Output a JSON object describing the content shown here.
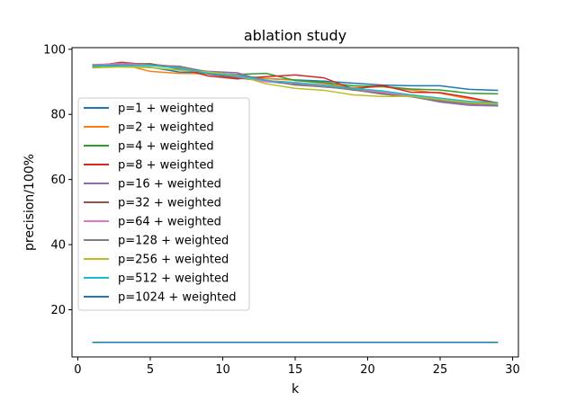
{
  "chart_data": {
    "type": "line",
    "title": "ablation study",
    "xlabel": "k",
    "ylabel": "precision/100%",
    "xlim": [
      -0.4,
      30.4
    ],
    "ylim": [
      5.5,
      100.5
    ],
    "xticks": [
      0,
      5,
      10,
      15,
      20,
      25,
      30
    ],
    "yticks": [
      20,
      40,
      60,
      80,
      100
    ],
    "grid": false,
    "legend_position": "center-left",
    "x": [
      1,
      3,
      5,
      7,
      9,
      11,
      13,
      15,
      17,
      19,
      21,
      23,
      25,
      27,
      29
    ],
    "series": [
      {
        "name": "p=1 + weighted",
        "color": "#1f77b4",
        "values": [
          95.0,
          94.6,
          94.5,
          93.0,
          92.8,
          92.0,
          91.0,
          90.6,
          90.2,
          89.6,
          89.0,
          88.8,
          88.8,
          87.7,
          87.4
        ]
      },
      {
        "name": "p=2 + weighted",
        "color": "#ff7f0e",
        "values": [
          95.3,
          95.5,
          93.2,
          92.6,
          92.5,
          91.8,
          91.0,
          90.5,
          89.5,
          88.2,
          88.5,
          87.5,
          86.5,
          84.8,
          83.6
        ]
      },
      {
        "name": "p=4 + weighted",
        "color": "#2ca02c",
        "values": [
          94.6,
          95.4,
          95.6,
          93.9,
          92.5,
          92.3,
          92.6,
          90.4,
          89.8,
          88.8,
          88.6,
          87.8,
          87.5,
          86.5,
          86.3
        ]
      },
      {
        "name": "p=8 + weighted",
        "color": "#d62728",
        "values": [
          94.7,
          96.0,
          95.2,
          94.2,
          91.8,
          90.9,
          91.6,
          92.1,
          91.2,
          87.8,
          88.9,
          86.8,
          86.7,
          85.2,
          83.5
        ]
      },
      {
        "name": "p=16 + weighted",
        "color": "#9467bd",
        "values": [
          95.2,
          95.4,
          95.3,
          94.1,
          93.2,
          92.8,
          90.1,
          89.2,
          88.4,
          87.8,
          87.0,
          85.5,
          83.8,
          82.8,
          82.6
        ]
      },
      {
        "name": "p=32 + weighted",
        "color": "#8c564b",
        "values": [
          95.0,
          95.8,
          95.4,
          94.6,
          92.4,
          91.2,
          90.2,
          89.4,
          88.6,
          87.5,
          86.5,
          85.8,
          84.2,
          83.4,
          83.0
        ]
      },
      {
        "name": "p=64 + weighted",
        "color": "#e377c2",
        "values": [
          95.1,
          95.6,
          95.2,
          94.3,
          92.8,
          91.6,
          90.0,
          89.6,
          88.8,
          87.9,
          86.8,
          85.6,
          84.5,
          83.6,
          83.2
        ]
      },
      {
        "name": "p=128 + weighted",
        "color": "#7f7f7f",
        "values": [
          95.0,
          95.2,
          95.1,
          94.8,
          93.0,
          92.2,
          90.5,
          89.0,
          88.5,
          87.6,
          86.2,
          85.4,
          84.0,
          83.2,
          82.9
        ]
      },
      {
        "name": "p=256 + weighted",
        "color": "#bcbd22",
        "values": [
          94.3,
          94.6,
          94.4,
          93.6,
          93.0,
          92.0,
          89.4,
          88.0,
          87.4,
          86.0,
          85.5,
          85.6,
          84.6,
          83.6,
          83.2
        ]
      },
      {
        "name": "p=512 + weighted",
        "color": "#17becf",
        "values": [
          94.8,
          95.0,
          95.0,
          94.2,
          92.6,
          91.8,
          90.4,
          89.8,
          89.0,
          88.0,
          87.2,
          86.0,
          85.0,
          84.0,
          83.6
        ]
      },
      {
        "name": "p=1024 + weighted",
        "color": "#1f77b4",
        "values": [
          10.0,
          10.0,
          10.0,
          10.0,
          10.0,
          10.0,
          10.0,
          10.0,
          10.0,
          10.0,
          10.0,
          10.0,
          10.0,
          10.0,
          10.0
        ]
      }
    ]
  }
}
